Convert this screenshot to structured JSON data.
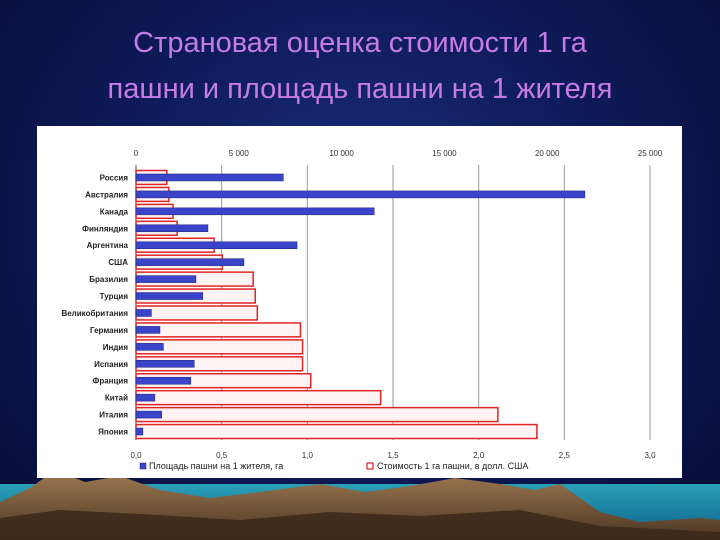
{
  "slide": {
    "title_line1": "Страновая оценка стоимости 1 га",
    "title_line2": "пашни и площадь пашни на 1 жителя"
  },
  "colors": {
    "area_bar": "#3a44c8",
    "price_bar_stroke": "#e02525"
  },
  "chart_data": {
    "type": "bar",
    "orientation": "horizontal",
    "categories": [
      "Россия",
      "Австралия",
      "Канада",
      "Финляндия",
      "Аргентина",
      "США",
      "Бразилия",
      "Турция",
      "Великобритания",
      "Германия",
      "Индия",
      "Испания",
      "Франция",
      "Китай",
      "Италия",
      "Япония"
    ],
    "series": [
      {
        "name": "Площадь пашни  на 1 жителя, га",
        "axis": "bottom",
        "color": "#3a44c8",
        "values": [
          0.86,
          2.62,
          1.39,
          0.42,
          0.94,
          0.63,
          0.35,
          0.39,
          0.09,
          0.14,
          0.16,
          0.34,
          0.32,
          0.11,
          0.15,
          0.04
        ]
      },
      {
        "name": "Стоимость 1 га пашни, в долл. США",
        "axis": "top",
        "color": "#e02525",
        "values": [
          1500,
          1600,
          1800,
          2000,
          3800,
          4200,
          5700,
          5800,
          5900,
          8000,
          8100,
          8100,
          8500,
          11900,
          17600,
          19500
        ]
      }
    ],
    "top_axis": {
      "ticks": [
        "0",
        "5 000",
        "10 000",
        "15 000",
        "20 000",
        "25 000"
      ],
      "range": [
        0,
        25000
      ]
    },
    "bottom_axis": {
      "ticks": [
        "0,0",
        "0,5",
        "1,0",
        "1,5",
        "2,0",
        "2,5",
        "3,0"
      ],
      "range": [
        0,
        3.0
      ]
    },
    "grid": true,
    "legend_position": "bottom"
  }
}
